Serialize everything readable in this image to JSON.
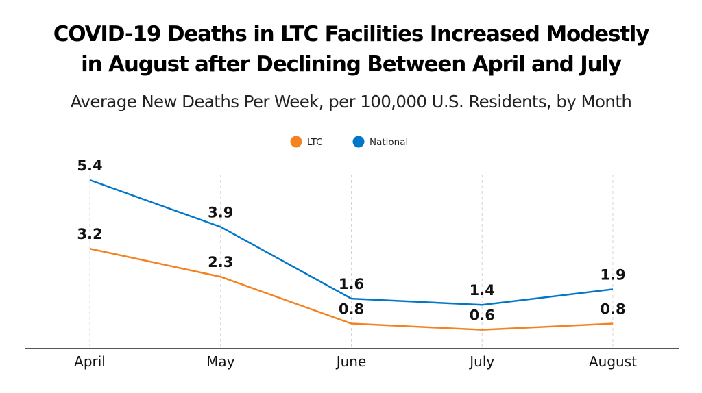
{
  "chart_data": {
    "type": "line",
    "title": "COVID-19 Deaths in LTC Facilities Increased Modestly in August after Declining Between April and July",
    "title_lines": [
      "COVID-19 Deaths in LTC Facilities Increased Modestly",
      "in August after Declining Between April and July"
    ],
    "subtitle": "Average New Deaths Per Week, per 100,000 U.S. Residents, by Month",
    "xlabel": "",
    "ylabel": "",
    "categories": [
      "April",
      "May",
      "June",
      "July",
      "August"
    ],
    "series": [
      {
        "name": "LTC",
        "color": "#f58220",
        "values": [
          3.2,
          2.3,
          0.8,
          0.6,
          0.8
        ],
        "labels": [
          "3.2",
          "2.3",
          "0.8",
          "0.6",
          "0.8"
        ]
      },
      {
        "name": "National",
        "color": "#0077c8",
        "values": [
          5.4,
          3.9,
          1.6,
          1.4,
          1.9
        ],
        "labels": [
          "5.4",
          "3.9",
          "1.6",
          "1.4",
          "1.9"
        ]
      }
    ],
    "ylim": [
      0,
      5.4
    ],
    "grid": "vertical dashed at categories",
    "legend": "top-center"
  }
}
